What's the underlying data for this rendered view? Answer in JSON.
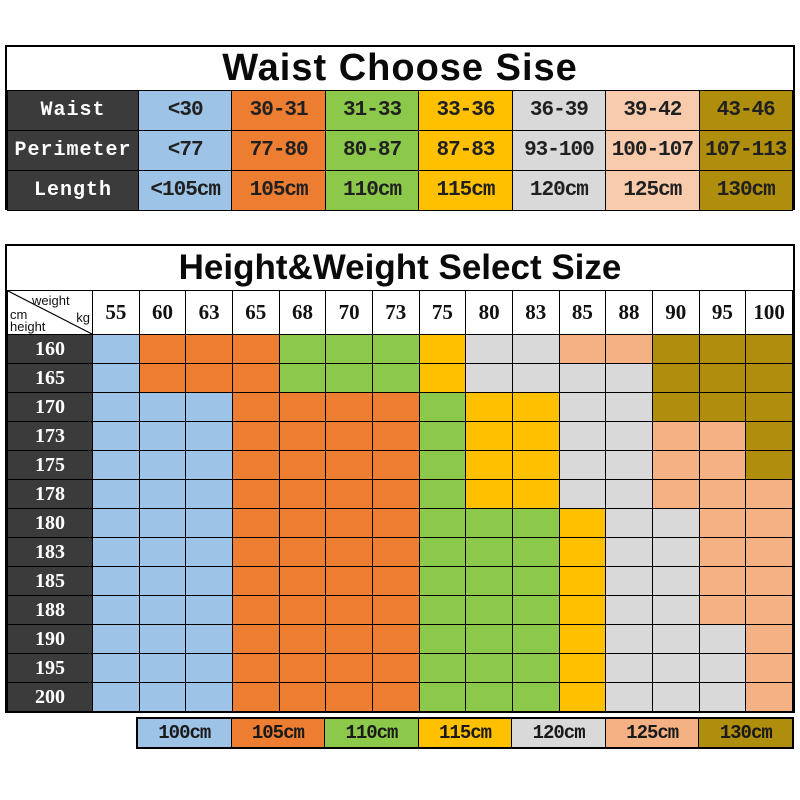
{
  "color_key": {
    "B": "#9DC3E6",
    "O": "#ED7D31",
    "G": "#8CC94A",
    "Y": "#FFC000",
    "S": "#D9D9D9",
    "P": "#F4B183",
    "L": "#F8CBAD",
    "D": "#AF8D0D"
  },
  "header_dark": "#3B3B3B",
  "chart_data": [
    {
      "type": "table",
      "title": "Waist Choose Sise",
      "row_labels": [
        "Waist",
        "Perimeter",
        "Length"
      ],
      "rows": [
        [
          "<30",
          "30-31",
          "31-33",
          "33-36",
          "36-39",
          "39-42",
          "43-46"
        ],
        [
          "<77",
          "77-80",
          "80-87",
          "87-83",
          "93-100",
          "100-107",
          "107-113"
        ],
        [
          "<105cm",
          "105cm",
          "110cm",
          "115cm",
          "120cm",
          "125cm",
          "130cm"
        ]
      ],
      "column_colors": "BOGYSLD"
    },
    {
      "type": "heatmap",
      "title": "Height&Weight Select Size",
      "corner": {
        "weight_label": "weight",
        "weight_unit": "kg",
        "height_unit": "cm",
        "height_label": "height"
      },
      "weights_kg": [
        "55",
        "60",
        "63",
        "65",
        "68",
        "70",
        "73",
        "75",
        "80",
        "83",
        "85",
        "88",
        "90",
        "95",
        "100"
      ],
      "heights_cm": [
        "160",
        "165",
        "170",
        "173",
        "175",
        "178",
        "180",
        "183",
        "185",
        "188",
        "190",
        "195",
        "200"
      ],
      "cell_colors": [
        "BOOOGGGYSSPPDDD",
        "BOOOGGGYSSSSDDD",
        "BBBOOOOGYYSSDDD",
        "BBBOOOOGYYSSPPD",
        "BBBOOOOGYYSSPPD",
        "BBBOOOOGYYSSPPP",
        "BBBOOOOGGGYSSPP",
        "BBBOOOOGGGYSSPP",
        "BBBOOOOGGGYSSPP",
        "BBBOOOOGGGYSSPP",
        "BBBOOOOGGGYSSSP",
        "BBBOOOOGGGYSSSP",
        "BBBOOOOGGGYSSSP"
      ],
      "legend_labels": [
        "100cm",
        "105cm",
        "110cm",
        "115cm",
        "120cm",
        "125cm",
        "130cm"
      ],
      "legend_colors": "BOGYSPD"
    }
  ]
}
